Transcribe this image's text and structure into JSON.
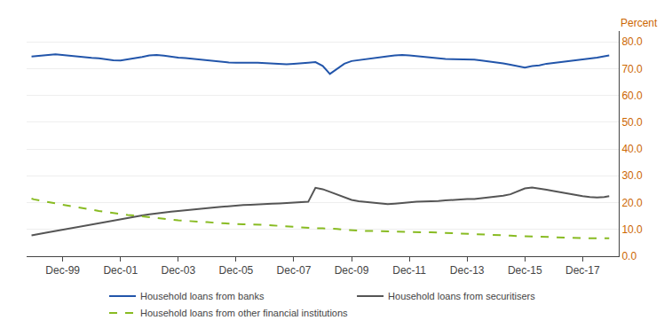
{
  "chart_data": {
    "type": "line",
    "ylabel": "Percent",
    "xlim": [
      1997.75,
      2018.25
    ],
    "xticks": [
      {
        "value": 1999,
        "label": "Dec-99"
      },
      {
        "value": 2001,
        "label": "Dec-01"
      },
      {
        "value": 2003,
        "label": "Dec-03"
      },
      {
        "value": 2005,
        "label": "Dec-05"
      },
      {
        "value": 2007,
        "label": "Dec-07"
      },
      {
        "value": 2009,
        "label": "Dec-09"
      },
      {
        "value": 2011,
        "label": "Dec-11"
      },
      {
        "value": 2013,
        "label": "Dec-13"
      },
      {
        "value": 2015,
        "label": "Dec-15"
      },
      {
        "value": 2017,
        "label": "Dec-17"
      }
    ],
    "ylim": [
      0,
      84
    ],
    "yticks": [
      {
        "value": 0,
        "label": "0.0"
      },
      {
        "value": 10,
        "label": "10.0"
      },
      {
        "value": 20,
        "label": "20.0"
      },
      {
        "value": 30,
        "label": "30.0"
      },
      {
        "value": 40,
        "label": "40.0"
      },
      {
        "value": 50,
        "label": "50.0"
      },
      {
        "value": 60,
        "label": "60.0"
      },
      {
        "value": 70,
        "label": "70.0"
      },
      {
        "value": 80,
        "label": "80.0"
      }
    ],
    "grid": "y",
    "legend": "bottom",
    "x": [
      1997.92,
      1998.0,
      1998.25,
      1998.5,
      1998.75,
      1999.0,
      1999.25,
      1999.5,
      1999.75,
      2000.0,
      2000.25,
      2000.5,
      2000.75,
      2001.0,
      2001.25,
      2001.5,
      2001.75,
      2002.0,
      2002.25,
      2002.5,
      2002.75,
      2003.0,
      2003.25,
      2003.5,
      2003.75,
      2004.0,
      2004.25,
      2004.5,
      2004.75,
      2005.0,
      2005.25,
      2005.5,
      2005.75,
      2006.0,
      2006.25,
      2006.5,
      2006.75,
      2007.0,
      2007.25,
      2007.5,
      2007.75,
      2008.0,
      2008.25,
      2008.5,
      2008.75,
      2009.0,
      2009.25,
      2009.5,
      2009.75,
      2010.0,
      2010.25,
      2010.5,
      2010.75,
      2011.0,
      2011.25,
      2011.5,
      2011.75,
      2012.0,
      2012.25,
      2012.5,
      2012.75,
      2013.0,
      2013.25,
      2013.5,
      2013.75,
      2014.0,
      2014.25,
      2014.5,
      2014.75,
      2015.0,
      2015.25,
      2015.5,
      2015.75,
      2016.0,
      2016.25,
      2016.5,
      2016.75,
      2017.0,
      2017.25,
      2017.5,
      2017.75,
      2017.92
    ],
    "series": [
      {
        "name": "Household loans from banks",
        "color": "#2255aa",
        "line_style": "solid",
        "values": [
          74.5,
          74.6,
          74.8,
          75.1,
          75.3,
          75.0,
          74.8,
          74.6,
          74.3,
          74.0,
          73.8,
          73.4,
          73.1,
          73.0,
          73.4,
          73.9,
          74.3,
          74.9,
          75.1,
          74.8,
          74.4,
          74.1,
          73.9,
          73.6,
          73.3,
          73.0,
          72.8,
          72.5,
          72.3,
          72.2,
          72.1,
          72.2,
          72.2,
          72.1,
          71.9,
          71.8,
          71.6,
          71.8,
          71.9,
          72.2,
          72.4,
          71.0,
          68.0,
          69.8,
          71.8,
          72.8,
          73.2,
          73.6,
          74.0,
          74.3,
          74.6,
          74.9,
          75.1,
          74.9,
          74.6,
          74.4,
          74.1,
          73.9,
          73.6,
          73.5,
          73.5,
          73.5,
          73.3,
          73.0,
          72.7,
          72.4,
          71.9,
          71.4,
          70.8,
          70.4,
          70.9,
          71.2,
          71.8,
          72.1,
          72.4,
          72.9,
          73.2,
          73.4,
          73.7,
          74.1,
          74.6,
          74.9
        ]
      },
      {
        "name": "Household loans from securitisers",
        "color": "#555555",
        "line_style": "solid",
        "values": [
          7.8,
          8.0,
          8.4,
          8.9,
          9.4,
          9.9,
          10.4,
          10.9,
          11.4,
          11.9,
          12.4,
          12.9,
          13.4,
          13.9,
          14.4,
          14.8,
          15.2,
          15.6,
          16.0,
          16.3,
          16.6,
          16.9,
          17.2,
          17.4,
          17.7,
          17.9,
          18.2,
          18.4,
          18.7,
          18.9,
          19.1,
          19.2,
          19.4,
          19.4,
          19.6,
          19.7,
          19.9,
          20.1,
          20.2,
          20.3,
          25.5,
          25.0,
          24.0,
          23.0,
          21.8,
          21.0,
          20.5,
          20.2,
          19.9,
          19.7,
          19.4,
          19.6,
          19.9,
          20.1,
          20.3,
          20.4,
          20.4,
          20.6,
          20.8,
          21.0,
          21.1,
          21.3,
          21.3,
          21.6,
          21.8,
          22.1,
          22.6,
          23.1,
          24.3,
          25.3,
          25.6,
          25.3,
          24.8,
          24.3,
          23.8,
          23.3,
          22.8,
          22.4,
          22.1,
          21.9,
          22.1,
          22.4
        ]
      },
      {
        "name": "Household loans from other financial institutions",
        "color": "#88bb22",
        "line_style": "dashed",
        "values": [
          21.5,
          21.2,
          20.7,
          20.1,
          19.7,
          19.2,
          18.8,
          18.4,
          17.9,
          17.4,
          16.9,
          16.5,
          16.1,
          15.7,
          15.4,
          15.2,
          14.9,
          14.5,
          14.1,
          13.9,
          13.7,
          13.4,
          13.2,
          13.1,
          12.9,
          12.7,
          12.5,
          12.3,
          12.1,
          11.9,
          11.9,
          11.9,
          11.9,
          11.7,
          11.5,
          11.3,
          11.1,
          11.0,
          10.9,
          10.7,
          10.4,
          10.4,
          10.4,
          10.2,
          9.9,
          9.7,
          9.5,
          9.4,
          9.4,
          9.3,
          9.2,
          9.1,
          9.0,
          8.9,
          8.9,
          8.9,
          8.9,
          8.8,
          8.7,
          8.7,
          8.5,
          8.4,
          8.4,
          8.2,
          8.1,
          7.9,
          7.8,
          7.7,
          7.5,
          7.4,
          7.3,
          7.2,
          7.1,
          7.1,
          7.0,
          6.9,
          6.9,
          6.8,
          6.7,
          6.7,
          6.7,
          6.7
        ]
      }
    ]
  }
}
